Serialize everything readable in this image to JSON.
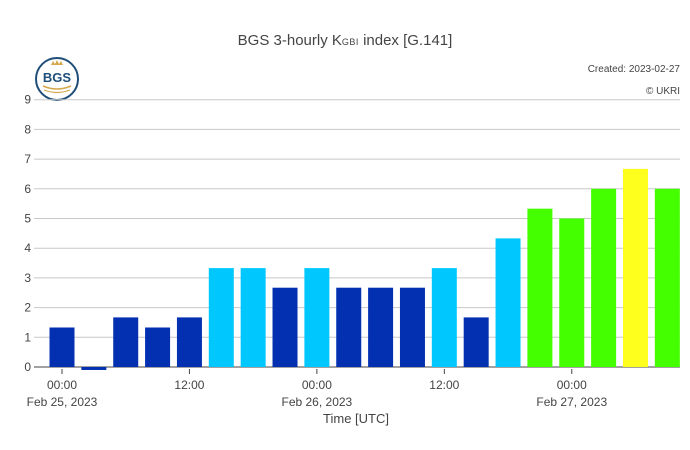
{
  "title": {
    "main": "BGS 3-hourly K",
    "subscript": "GBI",
    "suffix": " index [G.141]"
  },
  "created": "Created: 2023-02-27",
  "copyright": "© UKRI",
  "logo_text": "BGS",
  "chart_data": {
    "type": "bar",
    "xlabel": "Time [UTC]",
    "ylabel": "",
    "ylim": [
      -0.1,
      9
    ],
    "grid": true,
    "yticks": [
      "0",
      "1",
      "2",
      "3",
      "4",
      "5",
      "6",
      "7",
      "8",
      "9"
    ],
    "xticks": [
      {
        "hour": 0,
        "line1": "00:00",
        "line2": "Feb 25, 2023"
      },
      {
        "hour": 12,
        "line1": "12:00",
        "line2": ""
      },
      {
        "hour": 24,
        "line1": "00:00",
        "line2": "Feb 26, 2023"
      },
      {
        "hour": 36,
        "line1": "12:00",
        "line2": ""
      },
      {
        "hour": 48,
        "line1": "00:00",
        "line2": "Feb 27, 2023"
      }
    ],
    "bars": [
      {
        "time": "2023-02-25 00:00",
        "value": 1.33,
        "color": "#0230b0"
      },
      {
        "time": "2023-02-25 03:00",
        "value": -0.1,
        "color": "#0230b0"
      },
      {
        "time": "2023-02-25 06:00",
        "value": 1.67,
        "color": "#0230b0"
      },
      {
        "time": "2023-02-25 09:00",
        "value": 1.33,
        "color": "#0230b0"
      },
      {
        "time": "2023-02-25 12:00",
        "value": 1.67,
        "color": "#0230b0"
      },
      {
        "time": "2023-02-25 15:00",
        "value": 3.33,
        "color": "#00c8ff"
      },
      {
        "time": "2023-02-25 18:00",
        "value": 3.33,
        "color": "#00c8ff"
      },
      {
        "time": "2023-02-25 21:00",
        "value": 2.67,
        "color": "#0230b0"
      },
      {
        "time": "2023-02-26 00:00",
        "value": 3.33,
        "color": "#00c8ff"
      },
      {
        "time": "2023-02-26 03:00",
        "value": 2.67,
        "color": "#0230b0"
      },
      {
        "time": "2023-02-26 06:00",
        "value": 2.67,
        "color": "#0230b0"
      },
      {
        "time": "2023-02-26 09:00",
        "value": 2.67,
        "color": "#0230b0"
      },
      {
        "time": "2023-02-26 12:00",
        "value": 3.33,
        "color": "#00c8ff"
      },
      {
        "time": "2023-02-26 15:00",
        "value": 1.67,
        "color": "#0230b0"
      },
      {
        "time": "2023-02-26 18:00",
        "value": 4.33,
        "color": "#00c8ff"
      },
      {
        "time": "2023-02-26 21:00",
        "value": 5.33,
        "color": "#44ff00"
      },
      {
        "time": "2023-02-27 00:00",
        "value": 5.0,
        "color": "#44ff00"
      },
      {
        "time": "2023-02-27 03:00",
        "value": 6.0,
        "color": "#44ff00"
      },
      {
        "time": "2023-02-27 06:00",
        "value": 6.67,
        "color": "#ffff1e"
      },
      {
        "time": "2023-02-27 09:00",
        "value": 6.0,
        "color": "#44ff00"
      }
    ]
  }
}
